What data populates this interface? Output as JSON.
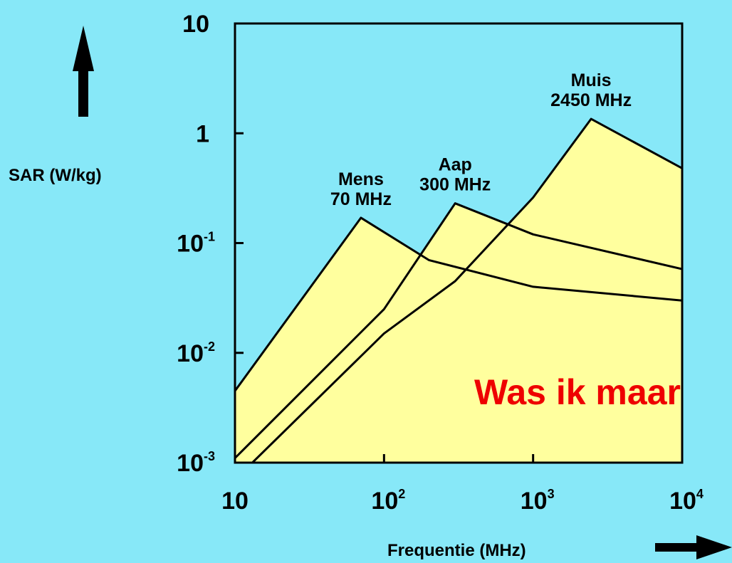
{
  "colors": {
    "background": "#87E8F8",
    "plot_fill": "#FFFF9E",
    "line": "#000000",
    "annotation": "#EE0000"
  },
  "chart_data": {
    "type": "line",
    "xlabel": "Frequentie (MHz)",
    "ylabel": "SAR (W/kg)",
    "x_scale": "log",
    "y_scale": "log",
    "xlim": [
      10,
      10000
    ],
    "ylim": [
      0.001,
      10
    ],
    "x_ticks": [
      {
        "value": 10,
        "base": "10",
        "exp": ""
      },
      {
        "value": 100,
        "base": "10",
        "exp": "2"
      },
      {
        "value": 1000,
        "base": "10",
        "exp": "3"
      },
      {
        "value": 10000,
        "base": "10",
        "exp": "4"
      }
    ],
    "y_ticks": [
      {
        "value": 10,
        "base": "10",
        "exp": ""
      },
      {
        "value": 1,
        "base": "1",
        "exp": ""
      },
      {
        "value": 0.1,
        "base": "10",
        "exp": "-1"
      },
      {
        "value": 0.01,
        "base": "10",
        "exp": "-2"
      },
      {
        "value": 0.001,
        "base": "10",
        "exp": "-3"
      }
    ],
    "grid": false,
    "series": [
      {
        "label_lines": [
          "Mens",
          "70 MHz"
        ],
        "x": [
          10,
          70,
          200,
          1000,
          10000
        ],
        "y": [
          0.0045,
          0.17,
          0.07,
          0.04,
          0.03
        ]
      },
      {
        "label_lines": [
          "Aap",
          "300 MHz"
        ],
        "x": [
          10,
          100,
          300,
          1000,
          10000
        ],
        "y": [
          0.0011,
          0.025,
          0.23,
          0.12,
          0.058
        ]
      },
      {
        "label_lines": [
          "Muis",
          "2450 MHz"
        ],
        "x": [
          10,
          100,
          300,
          1000,
          2450,
          10000
        ],
        "y": [
          0.0007,
          0.015,
          0.045,
          0.26,
          1.35,
          0.48
        ]
      }
    ],
    "annotation": "Was ik maar"
  }
}
